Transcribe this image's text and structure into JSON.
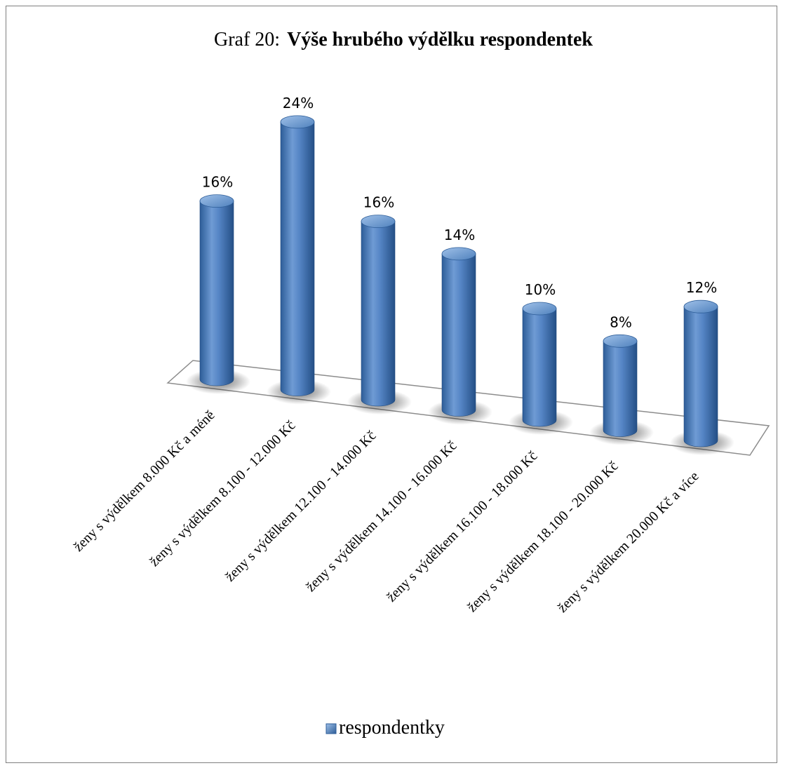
{
  "chart_data": {
    "type": "bar",
    "title_prefix": "Graf  20:",
    "title": "Výše hrubého výdělku respondentek",
    "categories": [
      "ženy s výdělkem 8.000 Kč a méně",
      "ženy s výdělkem 8.100 - 12.000 Kč",
      "ženy s výdělkem 12.100 - 14.000 Kč",
      "ženy s výdělkem 14.100 - 16.000 Kč",
      "ženy s výdělkem 16.100 - 18.000 Kč",
      "ženy s výdělkem 18.100 - 20.000 Kč",
      "ženy s výdělkem 20.000 Kč a více"
    ],
    "series": [
      {
        "name": "respondentky",
        "values": [
          16,
          24,
          16,
          14,
          10,
          8,
          12
        ]
      }
    ],
    "data_labels": [
      "16%",
      "24%",
      "16%",
      "14%",
      "10%",
      "8%",
      "12%"
    ],
    "value_unit": "%",
    "ylim": [
      0,
      25
    ],
    "shape": "3d-cylinder",
    "grid": false,
    "legend_position": "bottom",
    "colors": {
      "bar": "#4f81bd",
      "bar_dark": "#2a5a94",
      "bar_light": "#8fb2e0",
      "floor_stroke": "#8c8c8c"
    }
  }
}
